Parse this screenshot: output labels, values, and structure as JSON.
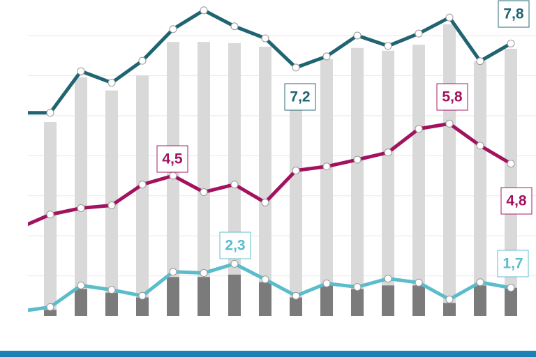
{
  "chart_data": {
    "type": "bar-line",
    "categories": [
      null,
      null,
      null,
      null,
      null,
      null,
      null,
      null,
      null,
      null,
      null,
      null,
      null,
      null,
      null,
      null,
      null
    ],
    "ylim": [
      1,
      8.8
    ],
    "yticks": [
      2,
      3,
      4,
      5,
      6,
      7,
      8
    ],
    "grid": true,
    "bars": [
      {
        "color": "#d9d9d9",
        "values": [
          null,
          5.84,
          6.96,
          6.63,
          7.0,
          7.84,
          7.84,
          7.81,
          7.72,
          6.2,
          7.41,
          7.69,
          7.62,
          7.77,
          8.28,
          7.36,
          7.67
        ]
      },
      {
        "color": "#7b7b7b",
        "values": [
          null,
          1.15,
          1.67,
          1.58,
          1.46,
          1.97,
          1.97,
          2.03,
          1.84,
          1.46,
          1.76,
          1.67,
          1.76,
          1.76,
          1.32,
          1.76,
          1.7
        ]
      }
    ],
    "series": [
      {
        "color": "#1f6470",
        "values": [
          6.07,
          6.07,
          7.11,
          6.82,
          7.37,
          8.16,
          8.63,
          8.23,
          7.93,
          7.2,
          7.48,
          8.0,
          7.74,
          8.05,
          8.45,
          7.36,
          7.8
        ],
        "value_labels": [
          null,
          null,
          null,
          null,
          null,
          null,
          null,
          null,
          null,
          "7,2",
          null,
          null,
          null,
          null,
          null,
          null,
          "7,8"
        ]
      },
      {
        "color": "#a2135f",
        "values": [
          3.2,
          3.53,
          3.69,
          3.76,
          4.28,
          4.5,
          4.09,
          4.28,
          3.83,
          4.63,
          4.73,
          4.9,
          5.08,
          5.67,
          5.8,
          5.25,
          4.8
        ],
        "value_labels": [
          null,
          null,
          null,
          null,
          null,
          "4,5",
          null,
          null,
          null,
          null,
          null,
          null,
          null,
          null,
          "5,8",
          null,
          "4,8"
        ]
      },
      {
        "color": "#5bbccc",
        "values": [
          1.11,
          1.22,
          1.76,
          1.65,
          1.5,
          2.1,
          2.07,
          2.3,
          1.91,
          1.5,
          1.81,
          1.72,
          1.93,
          1.83,
          1.41,
          1.84,
          1.7
        ],
        "value_labels": [
          null,
          null,
          null,
          null,
          null,
          null,
          null,
          "2,3",
          null,
          null,
          null,
          null,
          null,
          null,
          null,
          null,
          "1,7"
        ]
      }
    ]
  }
}
